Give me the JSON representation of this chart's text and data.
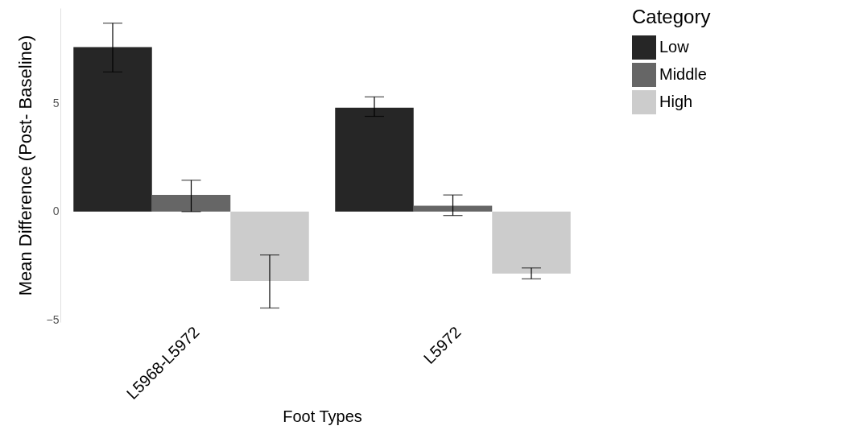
{
  "chart_data": {
    "type": "bar",
    "xlabel": "Foot Types",
    "ylabel": "Mean Difference (Post- Baseline)",
    "legend_title": "Category",
    "categories": [
      "L5968-L5972",
      "L5972"
    ],
    "series": [
      {
        "name": "Low",
        "color": "#262626",
        "values": [
          7.6,
          4.8
        ],
        "errors": [
          [
            6.45,
            8.7
          ],
          [
            4.4,
            5.3
          ]
        ]
      },
      {
        "name": "Middle",
        "color": "#666666",
        "values": [
          0.77,
          0.27
        ],
        "errors": [
          [
            0,
            1.45
          ],
          [
            -0.18,
            0.77
          ]
        ]
      },
      {
        "name": "High",
        "color": "#cccccc",
        "values": [
          -3.2,
          -2.86
        ],
        "errors": [
          [
            -4.45,
            -2.0
          ],
          [
            -3.1,
            -2.6
          ]
        ]
      }
    ],
    "ylim": [
      -5.1,
      9.4
    ],
    "yticks": [
      -5,
      0,
      5
    ],
    "grid": false,
    "legend": "right"
  }
}
